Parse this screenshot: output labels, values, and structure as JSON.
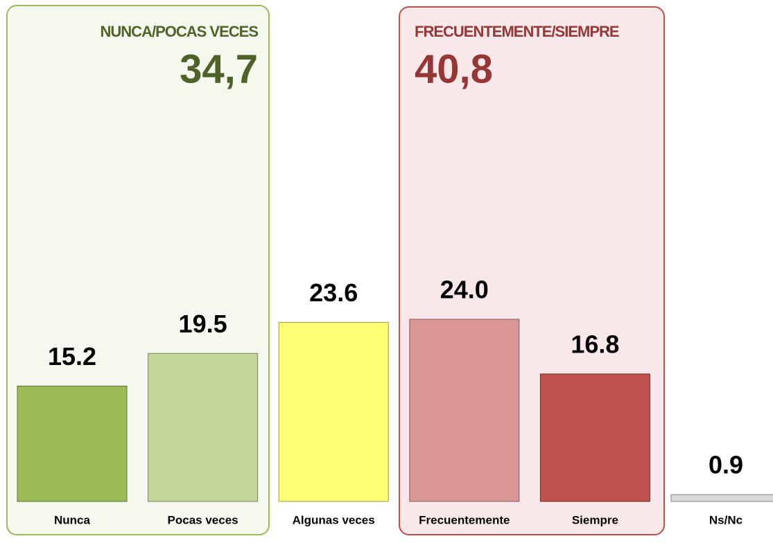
{
  "chart_data": {
    "type": "bar",
    "categories": [
      "Nunca",
      "Pocas veces",
      "Algunas veces",
      "Frecuentemente",
      "Siempre",
      "Ns/Nc"
    ],
    "values": [
      15.2,
      19.5,
      23.6,
      24.0,
      16.8,
      0.9
    ],
    "value_labels": [
      "15.2",
      "19.5",
      "23.6",
      "24.0",
      "16.8",
      "0.9"
    ],
    "colors": [
      "#9bbb59",
      "#c4d79b",
      "#ffff75",
      "#da9694",
      "#c0504d",
      "#d9d9d9"
    ],
    "groups": [
      {
        "title": "NUNCA/POCAS VECES",
        "total": "34,7",
        "color": "#4f6228"
      },
      {
        "title": "FRECUENTEMENTE/SIEMPRE",
        "total": "40,8",
        "color": "#953735"
      }
    ]
  }
}
